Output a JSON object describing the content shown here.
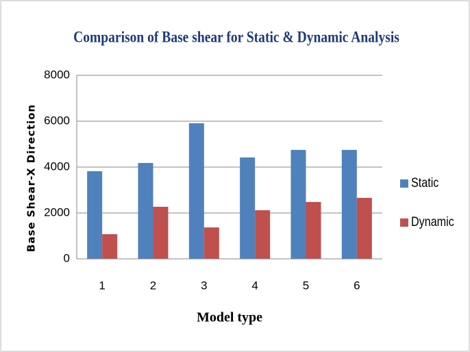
{
  "chart_data": {
    "type": "bar",
    "title": "Comparison of Base shear for Static & Dynamic Analysis",
    "x_label": "Model type",
    "y_label": "Base Shear-X Direction",
    "categories": [
      "1",
      "2",
      "3",
      "4",
      "5",
      "6"
    ],
    "series": [
      {
        "name": "Static",
        "color": "#4f81bd",
        "values": [
          3820,
          4180,
          5910,
          4420,
          4750,
          4750
        ]
      },
      {
        "name": "Dynamic",
        "color": "#c0504d",
        "values": [
          1075,
          2270,
          1370,
          2120,
          2480,
          2660
        ]
      }
    ],
    "ylim": [
      0,
      8000
    ],
    "yticks": [
      0,
      2000,
      4000,
      6000,
      8000
    ],
    "grid": true,
    "legend": "right"
  }
}
